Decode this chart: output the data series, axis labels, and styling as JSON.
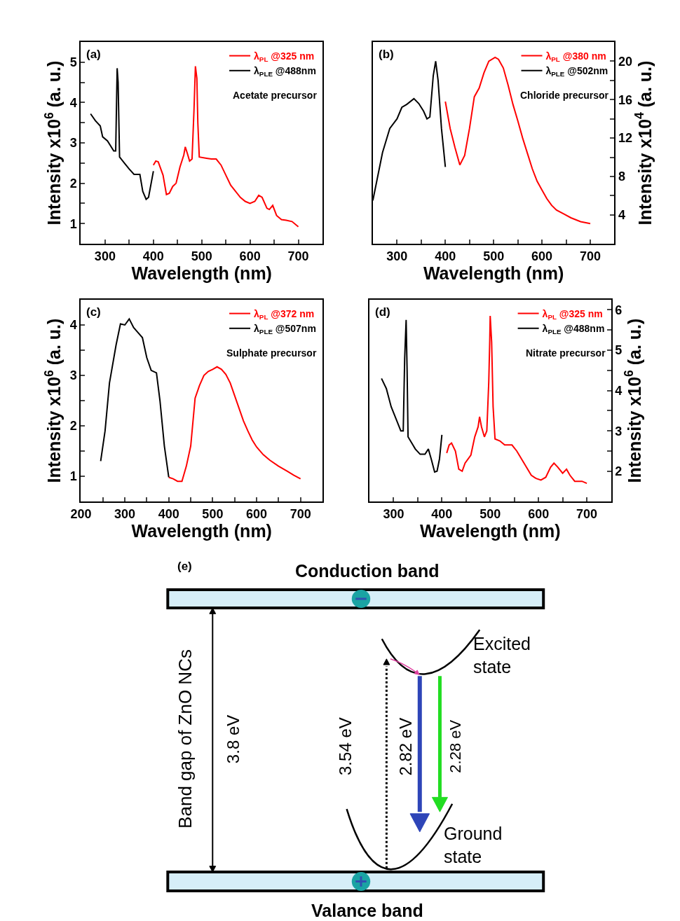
{
  "chart_data": [
    {
      "type": "line",
      "xlabel": "Wavelength (nm)",
      "ylabel": "Intensity x10$^{6}$ (a. u.)",
      "xlim": [
        250,
        750
      ],
      "ylim": [
        0.5,
        5.5
      ],
      "xticks": [
        300,
        {
          "value": 350,
          "label": null
        },
        400,
        {
          "value": 450,
          "label": null
        },
        500,
        {
          "value": 550,
          "label": null
        },
        600,
        {
          "value": 650,
          "label": null
        },
        700
      ],
      "yticks": [
        1,
        {
          "value": 1.5,
          "label": null
        },
        2,
        {
          "value": 2.5,
          "label": null
        },
        3,
        {
          "value": 3.5,
          "label": null
        },
        4,
        {
          "value": 4.5,
          "label": null
        },
        5
      ],
      "legend": "top right",
      "annotations": [
        "(a)",
        "Acetate precursor"
      ],
      "series": [
        {
          "name": "λ$_{PL}$ @325 nm",
          "color": "#ff0000",
          "x": [
            400,
            405,
            410,
            420,
            427,
            433,
            440,
            447,
            455,
            463,
            466,
            470,
            475,
            480,
            484,
            487,
            490,
            492,
            495,
            510,
            520,
            530,
            540,
            550,
            560,
            570,
            580,
            590,
            600,
            610,
            618,
            625,
            635,
            640,
            647,
            655,
            665,
            675,
            687,
            700
          ],
          "values": [
            2.45,
            2.55,
            2.53,
            2.2,
            1.72,
            1.75,
            1.92,
            2.0,
            2.4,
            2.7,
            2.9,
            2.75,
            2.55,
            2.6,
            3.8,
            4.9,
            4.6,
            3.5,
            2.65,
            2.62,
            2.6,
            2.6,
            2.45,
            2.2,
            1.95,
            1.8,
            1.65,
            1.55,
            1.5,
            1.55,
            1.7,
            1.65,
            1.38,
            1.35,
            1.45,
            1.2,
            1.1,
            1.08,
            1.05,
            0.92
          ]
        },
        {
          "name": "λ$_{PLE}$ @488nm",
          "color": "#000000",
          "x": [
            270,
            280,
            290,
            295,
            305,
            318,
            322,
            325,
            327,
            330,
            340,
            350,
            360,
            372,
            378,
            385,
            390,
            400
          ],
          "values": [
            3.72,
            3.55,
            3.42,
            3.15,
            3.05,
            2.8,
            2.8,
            4.85,
            4.5,
            2.65,
            2.5,
            2.35,
            2.22,
            2.22,
            1.8,
            1.6,
            1.65,
            2.3
          ]
        }
      ]
    },
    {
      "type": "line",
      "xlabel": "Wavelength (nm)",
      "y2label": "Intensity x10$^{4}$ (a. u.)",
      "xlim": [
        250,
        750
      ],
      "y2lim": [
        1,
        22
      ],
      "xticks": [
        300,
        {
          "value": 350,
          "label": null
        },
        400,
        {
          "value": 450,
          "label": null
        },
        500,
        {
          "value": 550,
          "label": null
        },
        600,
        {
          "value": 650,
          "label": null
        },
        700
      ],
      "y2ticks": [
        4,
        {
          "value": 6,
          "label": null
        },
        8,
        {
          "value": 10,
          "label": null
        },
        12,
        {
          "value": 14,
          "label": null
        },
        16,
        {
          "value": 18,
          "label": null
        },
        20
      ],
      "legend": "top right",
      "annotations": [
        "(b)",
        "Chloride precursor"
      ],
      "series": [
        {
          "name": "λ$_{PL}$ @380 nm",
          "color": "#ff0000",
          "axis": "y2",
          "x": [
            400,
            410,
            420,
            430,
            440,
            450,
            460,
            470,
            480,
            490,
            503,
            510,
            520,
            530,
            540,
            550,
            560,
            570,
            580,
            590,
            600,
            610,
            620,
            630,
            645,
            660,
            680,
            700
          ],
          "values": [
            15.8,
            13,
            11,
            9.2,
            10.2,
            13,
            16.3,
            17.2,
            18.8,
            20,
            20.4,
            20.2,
            19.3,
            17.5,
            15.5,
            13.8,
            12,
            10.4,
            8.8,
            7.5,
            6.6,
            5.7,
            5,
            4.5,
            4.1,
            3.7,
            3.3,
            3.1
          ]
        },
        {
          "name": "λ$_{PLE}$ @502nm",
          "color": "#000000",
          "axis": "y2",
          "x": [
            250,
            260,
            270,
            285,
            300,
            310,
            320,
            335,
            345,
            355,
            362,
            368,
            375,
            380,
            385,
            392,
            400
          ],
          "values": [
            5.5,
            8,
            10.5,
            13,
            14,
            15.2,
            15.5,
            16.1,
            15.6,
            14.8,
            14,
            14.2,
            18.5,
            20,
            18,
            13,
            9
          ]
        }
      ]
    },
    {
      "type": "line",
      "xlabel": "Wavelength (nm)",
      "ylabel": "Intensity x10$^{6}$ (a. u.)",
      "xlim": [
        200,
        750
      ],
      "ylim": [
        0.5,
        4.5
      ],
      "xticks": [
        200,
        {
          "value": 250,
          "label": null
        },
        300,
        {
          "value": 350,
          "label": null
        },
        400,
        {
          "value": 450,
          "label": null
        },
        500,
        {
          "value": 550,
          "label": null
        },
        600,
        {
          "value": 650,
          "label": null
        },
        700
      ],
      "yticks": [
        1,
        {
          "value": 1.5,
          "label": null
        },
        2,
        {
          "value": 2.5,
          "label": null
        },
        3,
        {
          "value": 3.5,
          "label": null
        },
        4
      ],
      "legend": "top right",
      "annotations": [
        "(c)",
        "Sulphate precursor"
      ],
      "series": [
        {
          "name": "λ$_{PL}$ @372 nm",
          "color": "#ff0000",
          "x": [
            400,
            410,
            420,
            430,
            440,
            450,
            460,
            470,
            480,
            490,
            500,
            510,
            520,
            530,
            540,
            550,
            560,
            570,
            580,
            590,
            600,
            615,
            630,
            650,
            670,
            685,
            700
          ],
          "values": [
            0.98,
            0.95,
            0.9,
            0.9,
            1.2,
            1.6,
            2.55,
            2.8,
            3.0,
            3.08,
            3.12,
            3.17,
            3.12,
            3.02,
            2.85,
            2.6,
            2.35,
            2.1,
            1.9,
            1.72,
            1.58,
            1.43,
            1.32,
            1.2,
            1.1,
            1.02,
            0.95
          ]
        },
        {
          "name": "λ$_{PLE}$ @507nm",
          "color": "#000000",
          "x": [
            245,
            255,
            265,
            280,
            290,
            300,
            310,
            320,
            330,
            340,
            350,
            360,
            372,
            380,
            390,
            400
          ],
          "values": [
            1.3,
            1.9,
            2.85,
            3.6,
            4.02,
            4.0,
            4.12,
            3.95,
            3.85,
            3.75,
            3.35,
            3.1,
            3.05,
            2.5,
            1.6,
            0.98
          ]
        }
      ]
    },
    {
      "type": "line",
      "xlabel": "Wavelength (nm)",
      "y2label": "Intensity x10$^{6}$ (a. u.)",
      "xlim": [
        250,
        750
      ],
      "y2lim": [
        1.25,
        6.25
      ],
      "xticks": [
        300,
        {
          "value": 350,
          "label": null
        },
        400,
        {
          "value": 450,
          "label": null
        },
        500,
        {
          "value": 550,
          "label": null
        },
        600,
        {
          "value": 650,
          "label": null
        },
        700
      ],
      "y2ticks": [
        2,
        {
          "value": 2.5,
          "label": null
        },
        3,
        {
          "value": 3.5,
          "label": null
        },
        4,
        {
          "value": 4.5,
          "label": null
        },
        5,
        {
          "value": 5.5,
          "label": null
        },
        6
      ],
      "legend": "top right",
      "annotations": [
        "(d)",
        "Nitrate precursor"
      ],
      "series": [
        {
          "name": "λ$_{PL}$ @325 nm",
          "color": "#ff0000",
          "axis": "y2",
          "x": [
            410,
            415,
            420,
            428,
            435,
            442,
            448,
            460,
            468,
            475,
            478,
            482,
            488,
            493,
            497,
            499,
            500,
            503,
            506,
            510,
            520,
            530,
            545,
            555,
            570,
            585,
            595,
            605,
            615,
            625,
            632,
            640,
            650,
            658,
            665,
            675,
            690,
            700
          ],
          "values": [
            2.45,
            2.65,
            2.7,
            2.5,
            2.05,
            2.0,
            2.2,
            2.4,
            2.85,
            3.1,
            3.35,
            3.1,
            2.85,
            3.0,
            4.2,
            5.2,
            5.85,
            5.2,
            3.6,
            2.8,
            2.75,
            2.65,
            2.65,
            2.5,
            2.2,
            1.9,
            1.82,
            1.78,
            1.85,
            2.1,
            2.2,
            2.1,
            1.95,
            2.05,
            1.9,
            1.75,
            1.75,
            1.7
          ]
        },
        {
          "name": "λ$_{PLE}$ @488nm",
          "color": "#000000",
          "axis": "y2",
          "x": [
            275,
            285,
            295,
            305,
            315,
            320,
            323,
            326,
            328,
            330,
            335,
            345,
            355,
            365,
            372,
            378,
            385,
            390,
            395,
            400
          ],
          "values": [
            4.3,
            4.05,
            3.6,
            3.3,
            3.0,
            3.0,
            4.8,
            5.75,
            4.5,
            2.85,
            2.75,
            2.55,
            2.42,
            2.42,
            2.55,
            2.3,
            1.98,
            2.0,
            2.3,
            2.9
          ]
        }
      ]
    },
    {
      "type": "other",
      "annotations": [
        "(e)",
        "Conduction band",
        "Valance band",
        "Band gap of ZnO NCs",
        "3.8 eV",
        "3.54 eV",
        "2.82 eV",
        "2.28 eV",
        "Excited state",
        "Ground state"
      ]
    }
  ]
}
